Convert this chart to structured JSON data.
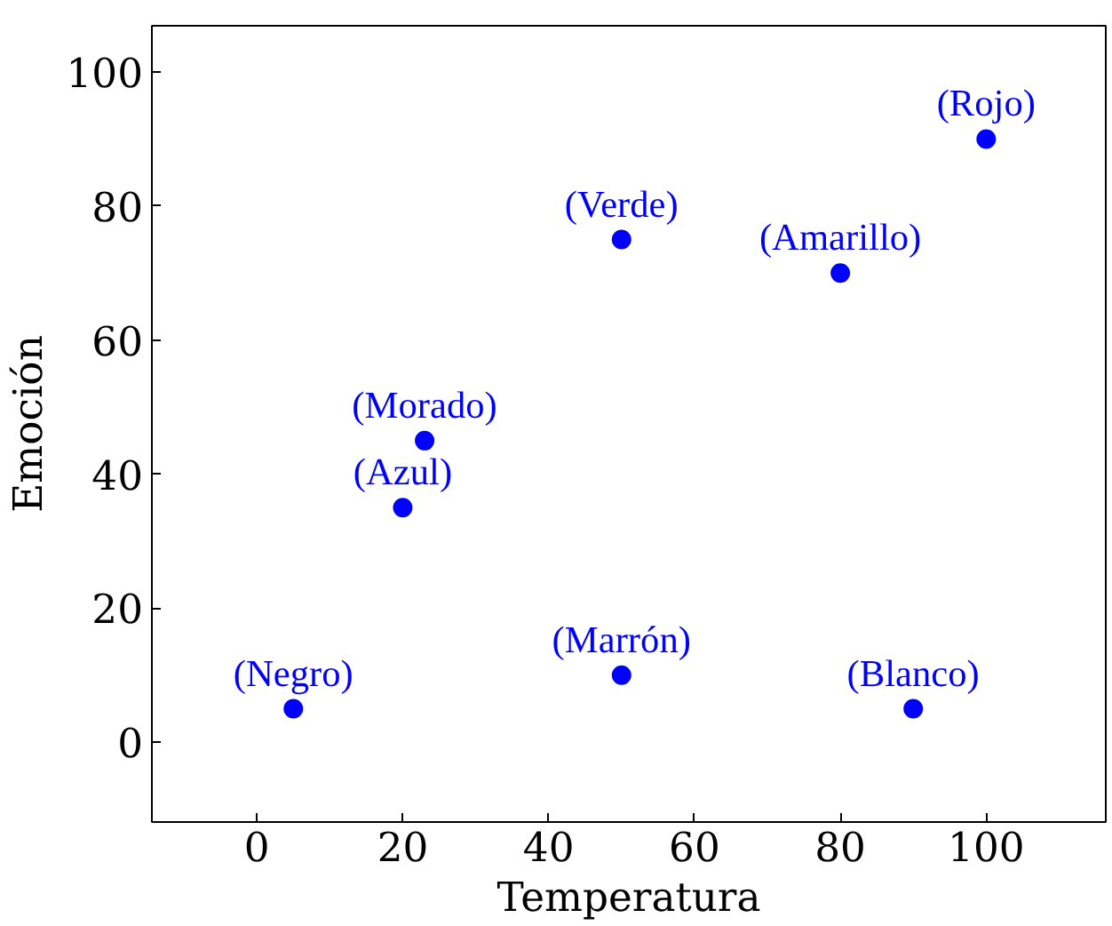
{
  "chart_data": {
    "type": "scatter",
    "xlabel": "Temperatura",
    "ylabel": "Emoción",
    "x": [
      5,
      20,
      23,
      50,
      50,
      80,
      90,
      100
    ],
    "series": [
      {
        "color": "#0000ff",
        "values": [
          5,
          35,
          45,
          75,
          10,
          70,
          5,
          90
        ]
      }
    ],
    "marker": "circle",
    "grid": false,
    "xlim": [
      -14.4,
      116.4
    ],
    "ylim": [
      -11.9,
      106.9
    ],
    "xticks": [
      0,
      20,
      40,
      60,
      80,
      100
    ],
    "yticks": [
      0,
      20,
      40,
      60,
      80,
      100
    ],
    "annotations": [
      {
        "text": "(Negro)",
        "x": 5,
        "y": 5
      },
      {
        "text": "(Azul)",
        "x": 20,
        "y": 35
      },
      {
        "text": "(Morado)",
        "x": 23,
        "y": 45
      },
      {
        "text": "(Verde)",
        "x": 50,
        "y": 75
      },
      {
        "text": "(Marrón)",
        "x": 50,
        "y": 10
      },
      {
        "text": "(Amarillo)",
        "x": 80,
        "y": 70
      },
      {
        "text": "(Blanco)",
        "x": 90,
        "y": 5
      },
      {
        "text": "(Rojo)",
        "x": 100,
        "y": 90
      }
    ]
  }
}
